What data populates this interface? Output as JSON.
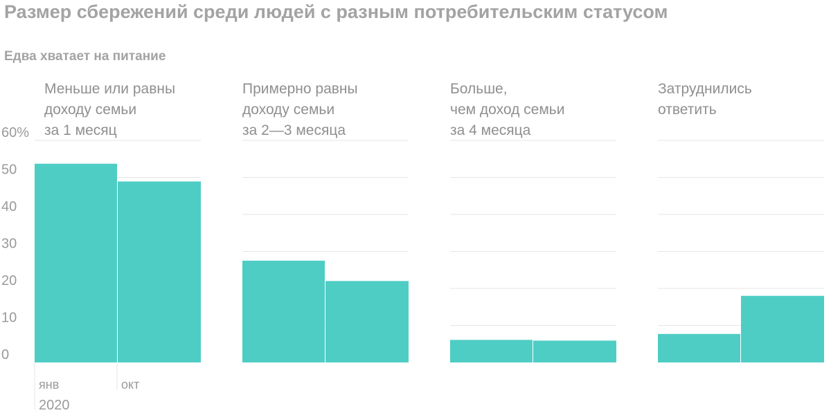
{
  "title": "Размер сбережений среди людей с разным потребительским статусом",
  "subtitle": "Едва хватает на питание",
  "colors": {
    "bar": "#4ecdc4",
    "grid": "#e6e6e6",
    "text": "#9a9a9a"
  },
  "chart_data": {
    "type": "bar",
    "panels": [
      {
        "title": "Меньше или равны\nдоходу семьи\nза 1 месяц",
        "categories": [
          "янв",
          "окт"
        ],
        "values": [
          53.7,
          48.9
        ]
      },
      {
        "title": "Примерно равны\nдоходу семьи\nза 2—3 месяца",
        "categories": [
          "янв",
          "окт"
        ],
        "values": [
          27.5,
          22
        ]
      },
      {
        "title": "Больше,\nчем доход семьи\nза 4 месяца",
        "categories": [
          "янв",
          "окт"
        ],
        "values": [
          6.1,
          5.9
        ]
      },
      {
        "title": "Затруднились\nответить",
        "categories": [
          "янв",
          "окт"
        ],
        "values": [
          7.7,
          18
        ]
      }
    ],
    "ylim": [
      0,
      60
    ],
    "yticks": [
      "0",
      "10",
      "20",
      "30",
      "40",
      "50",
      "60%"
    ],
    "x_tick_labels": [
      "янв",
      "окт"
    ],
    "x_year_label": "2020",
    "grid": true
  }
}
